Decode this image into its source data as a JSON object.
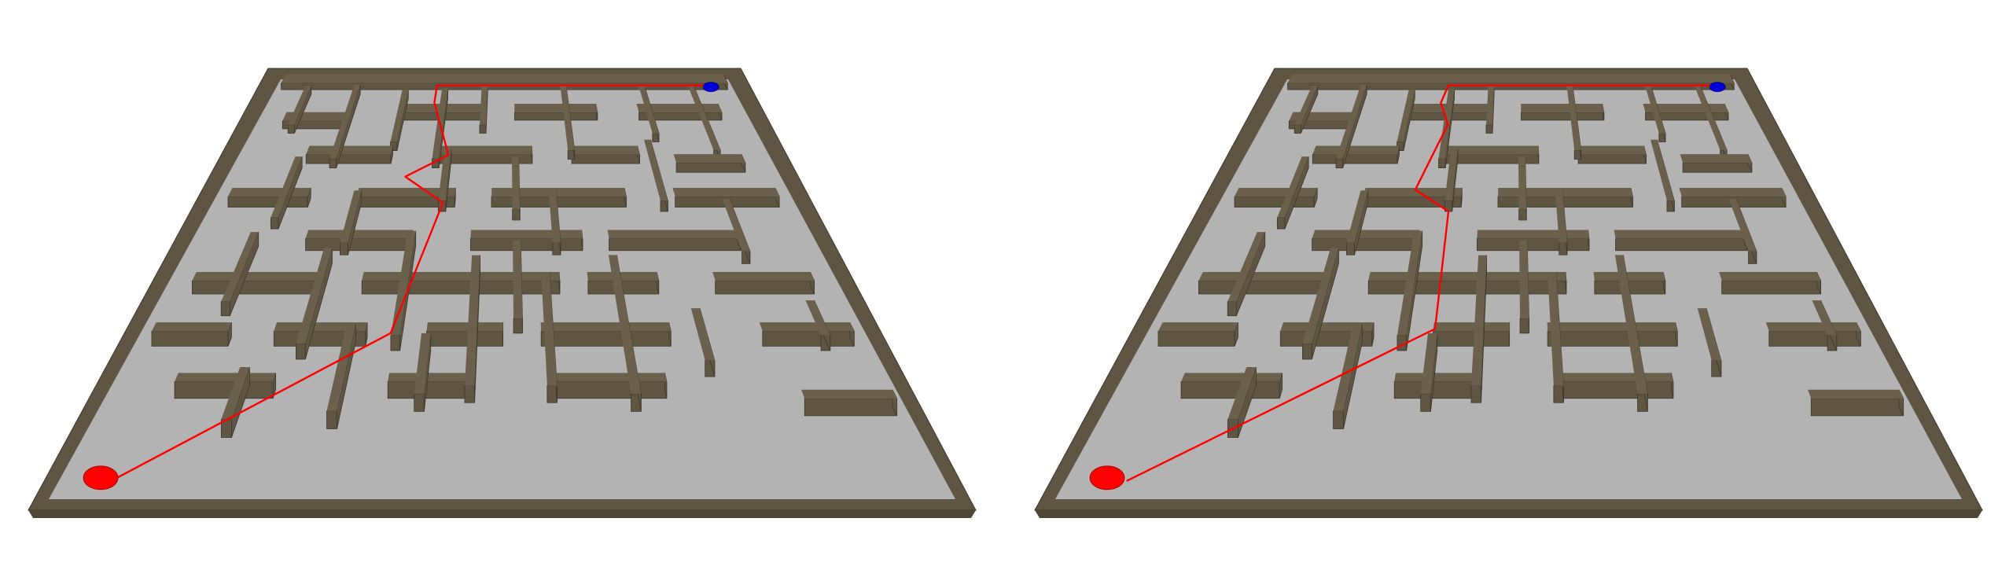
{
  "scene": {
    "type": "3d-maze-comparison",
    "panels": [
      {
        "id": "left",
        "start_marker": {
          "color": "#ff0000",
          "shape": "ellipse"
        },
        "goal_marker": {
          "color": "#0000dd",
          "shape": "ellipse"
        },
        "path_color": "#ff0000"
      },
      {
        "id": "right",
        "start_marker": {
          "color": "#ff0000",
          "shape": "ellipse"
        },
        "goal_marker": {
          "color": "#0000dd",
          "shape": "ellipse"
        },
        "path_color": "#ff0000"
      }
    ],
    "colors": {
      "floor": "#b3b3b3",
      "wall": "#5e5543",
      "wall_edge": "#3e382c",
      "background": "#ffffff"
    }
  }
}
